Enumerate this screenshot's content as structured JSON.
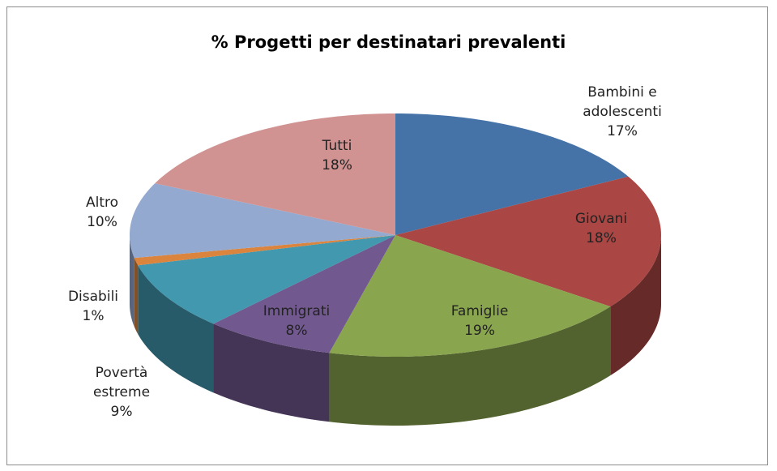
{
  "chart_data": {
    "type": "pie",
    "title": "% Progetti per destinatari prevalenti",
    "categories": [
      "Bambini e adolescenti",
      "Giovani",
      "Famiglie",
      "Immigrati",
      "Povertà estreme",
      "Disabili",
      "Altro",
      "Tutti"
    ],
    "values": [
      17,
      18,
      19,
      8,
      9,
      1,
      10,
      18
    ],
    "value_labels": [
      "17%",
      "18%",
      "19%",
      "8%",
      "9%",
      "1%",
      "10%",
      "18%"
    ],
    "colors": [
      "#4572A7",
      "#AA4643",
      "#89A54E",
      "#71588F",
      "#4198AF",
      "#DB843D",
      "#93A9CF",
      "#D19392"
    ]
  }
}
